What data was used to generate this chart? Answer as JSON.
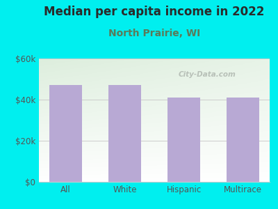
{
  "title": "Median per capita income in 2022",
  "subtitle": "North Prairie, WI",
  "categories": [
    "All",
    "White",
    "Hispanic",
    "Multirace"
  ],
  "values": [
    47000,
    47000,
    41000,
    41000
  ],
  "bar_color": "#b8a9d4",
  "background_color": "#00efef",
  "plot_bg_topleft": "#ddeedd",
  "plot_bg_bottomright": "#ffffff",
  "title_color": "#2a2a2a",
  "subtitle_color": "#5a7a5a",
  "tick_color": "#555555",
  "grid_color": "#cccccc",
  "ylim": [
    0,
    60000
  ],
  "yticks": [
    0,
    20000,
    40000,
    60000
  ],
  "ytick_labels": [
    "$0",
    "$20k",
    "$40k",
    "$60k"
  ],
  "title_fontsize": 12,
  "subtitle_fontsize": 10,
  "watermark": "City-Data.com",
  "bar_width": 0.55
}
